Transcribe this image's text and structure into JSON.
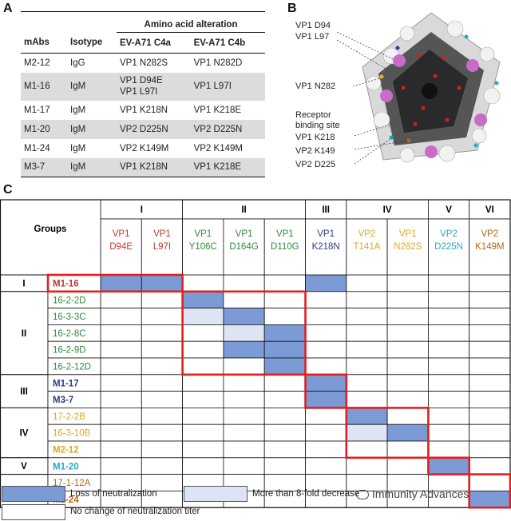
{
  "panel_labels": {
    "a": "A",
    "b": "B",
    "c": "C"
  },
  "panelA": {
    "col_mabs": "mAbs",
    "col_isotype": "Isotype",
    "col_group": "Amino acid alteration",
    "col_c4a": "EV-A71 C4a",
    "col_c4b": "EV-A71 C4b",
    "rows": [
      {
        "mab": "M2-12",
        "isotype": "IgG",
        "c4a_1": "VP1 N282S",
        "c4a_2": "",
        "c4b": "VP1 N282D",
        "shaded": false
      },
      {
        "mab": "M1-16",
        "isotype": "IgM",
        "c4a_1": "VP1 D94E",
        "c4a_2": "VP1 L97I",
        "c4b": "VP1 L97I",
        "shaded": true
      },
      {
        "mab": "M1-17",
        "isotype": "IgM",
        "c4a_1": "VP1 K218N",
        "c4a_2": "",
        "c4b": "VP1 K218E",
        "shaded": false
      },
      {
        "mab": "M1-20",
        "isotype": "IgM",
        "c4a_1": "VP2 D225N",
        "c4a_2": "",
        "c4b": "VP2 D225N",
        "shaded": true
      },
      {
        "mab": "M1-24",
        "isotype": "IgM",
        "c4a_1": "VP2 K149M",
        "c4a_2": "",
        "c4b": "VP2 K149M",
        "shaded": false
      },
      {
        "mab": "M3-7",
        "isotype": "IgM",
        "c4a_1": "VP1 K218N",
        "c4a_2": "",
        "c4b": "VP1 K218E",
        "shaded": true
      }
    ]
  },
  "panelB": {
    "labels": [
      {
        "text": "VP1 D94",
        "color": "#c0392b"
      },
      {
        "text": "VP1 L97",
        "color": "#c0392b"
      },
      {
        "text": "VP1 N282",
        "color": "#e8b423"
      },
      {
        "text": "Receptor",
        "color": "#b04fb0"
      },
      {
        "text": "binding site",
        "color": "#b04fb0"
      },
      {
        "text": "VP1 K218",
        "color": "#3a3f8f"
      },
      {
        "text": "VP2 K149",
        "color": "#b5651d"
      },
      {
        "text": "VP2 D225",
        "color": "#27a9c9"
      }
    ]
  },
  "panelC": {
    "groups_header": "Groups",
    "col_groups": [
      {
        "label": "I",
        "span": 2
      },
      {
        "label": "II",
        "span": 3
      },
      {
        "label": "III",
        "span": 1
      },
      {
        "label": "IV",
        "span": 2
      },
      {
        "label": "V",
        "span": 1
      },
      {
        "label": "VI",
        "span": 1
      }
    ],
    "columns": [
      {
        "l1": "VP1",
        "l2": "D94E",
        "color": "#c0392b"
      },
      {
        "l1": "VP1",
        "l2": "L97I",
        "color": "#c0392b"
      },
      {
        "l1": "VP1",
        "l2": "Y106C",
        "color": "#2e8b3a"
      },
      {
        "l1": "VP1",
        "l2": "D164G",
        "color": "#2e8b3a"
      },
      {
        "l1": "VP1",
        "l2": "D110G",
        "color": "#2e8b3a"
      },
      {
        "l1": "VP1",
        "l2": "K218N",
        "color": "#2f3b8f"
      },
      {
        "l1": "VP2",
        "l2": "T141A",
        "color": "#e0a820"
      },
      {
        "l1": "VP1",
        "l2": "N282S",
        "color": "#e0a820"
      },
      {
        "l1": "VP2",
        "l2": "D225N",
        "color": "#2aa8c8"
      },
      {
        "l1": "VP2",
        "l2": "K149M",
        "color": "#b5651d"
      }
    ],
    "row_groups": [
      {
        "label": "I",
        "rows": [
          {
            "name": "M1-16",
            "color": "#c0392b",
            "bold": true,
            "cells": [
              2,
              2,
              0,
              0,
              0,
              2,
              0,
              0,
              0,
              0
            ]
          }
        ]
      },
      {
        "label": "II",
        "rows": [
          {
            "name": "16-2-2D",
            "color": "#2e8b3a",
            "bold": false,
            "cells": [
              0,
              0,
              2,
              0,
              0,
              0,
              0,
              0,
              0,
              0
            ]
          },
          {
            "name": "16-3-3C",
            "color": "#2e8b3a",
            "bold": false,
            "cells": [
              0,
              0,
              1,
              2,
              0,
              0,
              0,
              0,
              0,
              0
            ]
          },
          {
            "name": "16-2-8C",
            "color": "#2e8b3a",
            "bold": false,
            "cells": [
              0,
              0,
              0,
              1,
              2,
              0,
              0,
              0,
              0,
              0
            ]
          },
          {
            "name": "16-2-9D",
            "color": "#2e8b3a",
            "bold": false,
            "cells": [
              0,
              0,
              0,
              2,
              2,
              0,
              0,
              0,
              0,
              0
            ]
          },
          {
            "name": "16-2-12D",
            "color": "#2e8b3a",
            "bold": false,
            "cells": [
              0,
              0,
              0,
              0,
              2,
              0,
              0,
              0,
              0,
              0
            ]
          }
        ]
      },
      {
        "label": "III",
        "rows": [
          {
            "name": "M1-17",
            "color": "#2f3b8f",
            "bold": true,
            "cells": [
              0,
              0,
              0,
              0,
              0,
              2,
              0,
              0,
              0,
              0
            ]
          },
          {
            "name": "M3-7",
            "color": "#2f3b8f",
            "bold": true,
            "cells": [
              0,
              0,
              0,
              0,
              0,
              2,
              0,
              0,
              0,
              0
            ]
          }
        ]
      },
      {
        "label": "IV",
        "rows": [
          {
            "name": "17-2-2B",
            "color": "#e0a820",
            "bold": false,
            "cells": [
              0,
              0,
              0,
              0,
              0,
              0,
              2,
              0,
              0,
              0
            ]
          },
          {
            "name": "16-3-10B",
            "color": "#e0a820",
            "bold": false,
            "cells": [
              0,
              0,
              0,
              0,
              0,
              0,
              1,
              2,
              0,
              0
            ]
          },
          {
            "name": "M2-12",
            "color": "#e0a820",
            "bold": true,
            "cells": [
              0,
              0,
              0,
              0,
              0,
              0,
              0,
              0,
              0,
              0
            ]
          }
        ]
      },
      {
        "label": "V",
        "rows": [
          {
            "name": "M1-20",
            "color": "#2aa8c8",
            "bold": true,
            "cells": [
              0,
              0,
              0,
              0,
              0,
              0,
              0,
              0,
              2,
              0
            ]
          }
        ]
      },
      {
        "label": "VI",
        "rows": [
          {
            "name": "17-1-12A",
            "color": "#b5651d",
            "bold": false,
            "cells": [
              0,
              0,
              0,
              0,
              0,
              0,
              0,
              0,
              0,
              0
            ]
          },
          {
            "name": "M1-24",
            "color": "#b5651d",
            "bold": true,
            "cells": [
              0,
              0,
              0,
              0,
              0,
              0,
              0,
              0,
              0,
              2
            ]
          }
        ]
      }
    ],
    "fill_colors": {
      "strong": "#7b9ad6",
      "light": "#dde4f4",
      "none": "#ffffff",
      "box": "#e02020"
    },
    "legend": {
      "loss": "Loss of neutralization",
      "decrease": "More than 8-fold decrease of neutralization titer",
      "nochange": "No change of neutralization titer",
      "watermark": "Immunity Advances"
    }
  }
}
